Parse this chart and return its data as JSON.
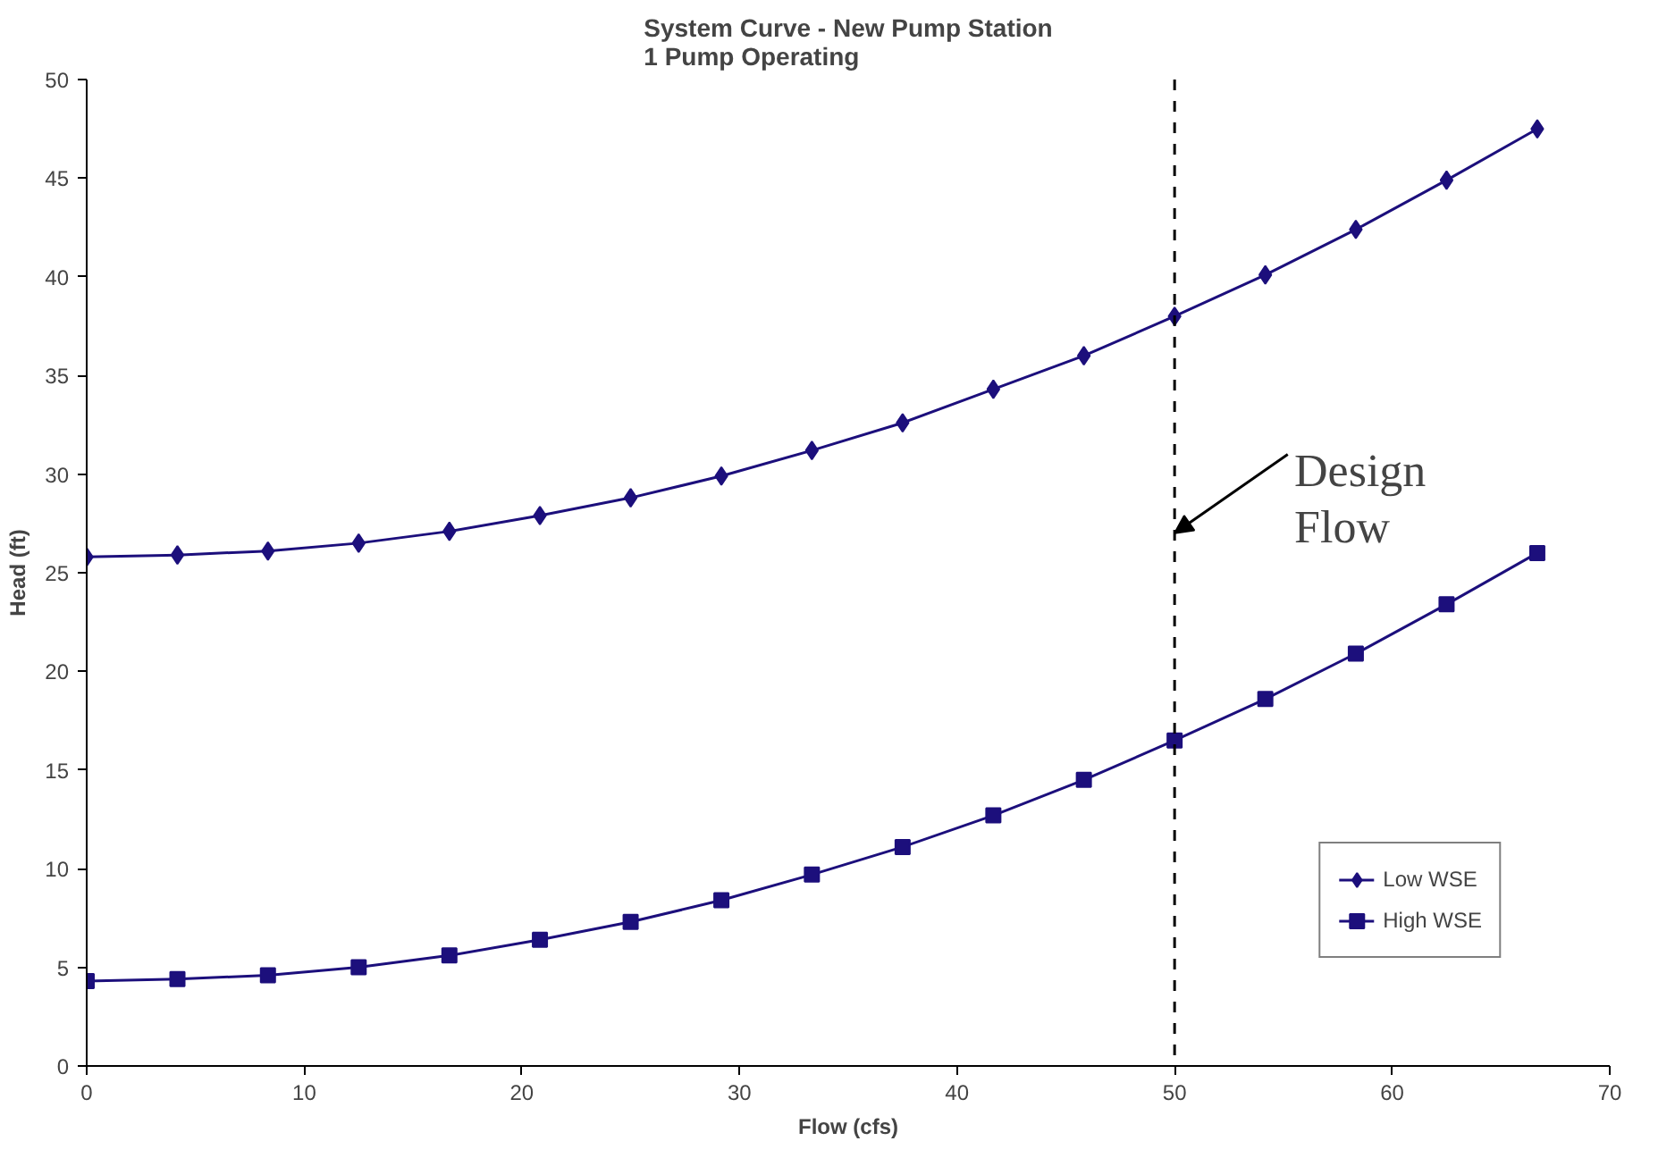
{
  "chart_data": {
    "type": "line",
    "title": "System Curve - New Pump Station\n1 Pump Operating",
    "xlabel": "Flow (cfs)",
    "ylabel": "Head (ft)",
    "x": [
      0,
      4.17,
      8.33,
      12.5,
      16.67,
      20.83,
      25,
      29.17,
      33.33,
      37.5,
      41.67,
      45.83,
      50,
      54.17,
      58.33,
      62.5,
      66.67
    ],
    "series": [
      {
        "name": "Low WSE",
        "color": "#1c0f7c",
        "marker": "diamond",
        "values": [
          25.8,
          25.9,
          26.1,
          26.5,
          27.1,
          27.9,
          28.8,
          29.9,
          31.2,
          32.6,
          34.3,
          36.0,
          38.0,
          40.1,
          42.4,
          44.9,
          47.5
        ]
      },
      {
        "name": "High WSE",
        "color": "#1c0f7c",
        "marker": "square",
        "values": [
          4.3,
          4.4,
          4.6,
          5.0,
          5.6,
          6.4,
          7.3,
          8.4,
          9.7,
          11.1,
          12.7,
          14.5,
          16.5,
          18.6,
          20.9,
          23.4,
          26.0
        ]
      }
    ],
    "xlim": [
      0,
      70
    ],
    "xticks": [
      0,
      10,
      20,
      30,
      40,
      50,
      60,
      70
    ],
    "ylim": [
      0,
      50
    ],
    "yticks": [
      0,
      5,
      10,
      15,
      20,
      25,
      30,
      35,
      40,
      45,
      50
    ],
    "grid": false,
    "legend": "bottom right",
    "line_style": "solid",
    "ref_lines": [
      {
        "axis": "x",
        "value": 50,
        "color": "#000000",
        "line_style": "dashed"
      }
    ],
    "annotations": [
      {
        "text": "Design\nFlow",
        "x": 50,
        "y": 27
      }
    ]
  }
}
